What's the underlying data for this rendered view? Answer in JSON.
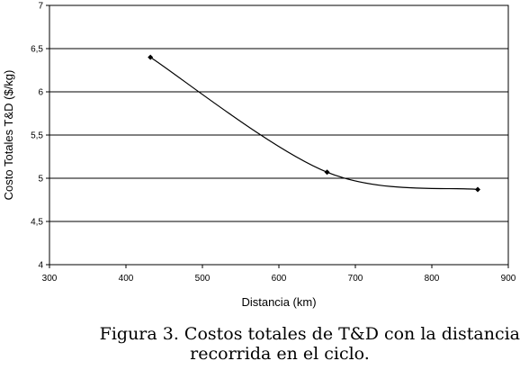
{
  "chart_data": {
    "type": "line",
    "xlabel": "Distancia (km)",
    "ylabel": "Costo Totales T&D ($/kg)",
    "xlim": [
      300,
      900
    ],
    "ylim": [
      4,
      7
    ],
    "xticks": [
      "300",
      "400",
      "500",
      "600",
      "700",
      "800",
      "900"
    ],
    "yticks": [
      "4",
      "4,5",
      "5",
      "5,5",
      "6",
      "6,5",
      "7"
    ],
    "x": [
      432,
      663,
      860
    ],
    "y": [
      6.4,
      5.07,
      4.87
    ],
    "grid": "horizontal",
    "line_color": "#000000"
  },
  "caption": {
    "line1": "Figura 3. Costos totales de T&D con la distancia",
    "line2": "recorrida en el ciclo."
  }
}
